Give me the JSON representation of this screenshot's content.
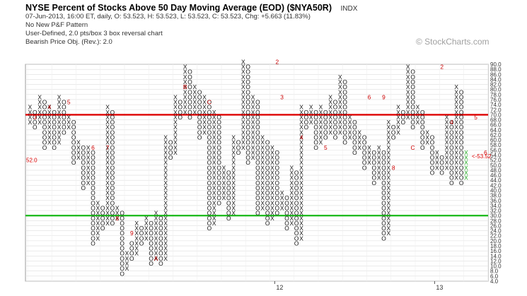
{
  "header": {
    "title": "NYSE Percent of Stocks Above 50 Day Moving Average (EOD) ($NYA50R)",
    "exchange": "INDX",
    "quote": "07-Jun-2013, 16:00 ET, daily, O: 53.523, H: 53.523, L: 53.523, C: 53.523, Chg: +5.663 (11.83%)",
    "pattern": "No New P&F Pattern",
    "scaling": "User-Defined, 2.0 pts/box 3 box reversal chart",
    "objective": "Bearish Price Obj. (Rev.): 2.0"
  },
  "watermark": {
    "text": "© StockCharts.com",
    "icon": "stockcharts-logo-icon"
  },
  "chart_data": {
    "type": "point-and-figure",
    "box_size": 2.0,
    "reversal": 3,
    "ylim": [
      4,
      90
    ],
    "y_ticks": [
      "4.0",
      "6.0",
      "8.0",
      "10.0",
      "12.0",
      "14.0",
      "16.0",
      "18.0",
      "20.0",
      "22.0",
      "24.0",
      "26.0",
      "28.0",
      "30.0",
      "32.0",
      "34.0",
      "36.0",
      "38.0",
      "40.0",
      "42.0",
      "44.0",
      "46.0",
      "48.0",
      "50.0",
      "52.0",
      "54.0",
      "56.0",
      "58.0",
      "60.0",
      "62.0",
      "64.0",
      "66.0",
      "68.0",
      "70.0",
      "72.0",
      "74.0",
      "76.0",
      "78.0",
      "80.0",
      "82.0",
      "84.0",
      "86.0",
      "88.0",
      "90.0"
    ],
    "x_labels": [
      {
        "label": "12",
        "column": 51
      },
      {
        "label": "13",
        "column": 84
      }
    ],
    "reference_lines": [
      {
        "value": 70,
        "color": "#dd0000"
      },
      {
        "value": 30,
        "color": "#22bb22"
      }
    ],
    "last_price_label": "<-53.52",
    "left_price_label": "52.0",
    "month_markers": [
      {
        "label": "3",
        "column": 1,
        "value": 68
      },
      {
        "label": "4",
        "column": 4,
        "value": 72
      },
      {
        "label": "5",
        "column": 8,
        "value": 74
      },
      {
        "label": "6",
        "column": 13,
        "value": 56
      },
      {
        "label": "7",
        "column": 16,
        "value": 56
      },
      {
        "label": "8",
        "column": 18,
        "value": 28
      },
      {
        "label": "9",
        "column": 21,
        "value": 22
      },
      {
        "label": "A",
        "column": 26,
        "value": 12
      },
      {
        "label": "B",
        "column": 32,
        "value": 80
      },
      {
        "label": "C",
        "column": 37,
        "value": 74
      },
      {
        "label": "2",
        "column": 51,
        "value": 90
      },
      {
        "label": "3",
        "column": 52,
        "value": 76
      },
      {
        "label": "4",
        "column": 56,
        "value": 60
      },
      {
        "label": "5",
        "column": 61,
        "value": 56
      },
      {
        "label": "6",
        "column": 70,
        "value": 76
      },
      {
        "label": "8",
        "column": 75,
        "value": 48
      },
      {
        "label": "9",
        "column": 73,
        "value": 76
      },
      {
        "label": "C",
        "column": 79,
        "value": 56
      },
      {
        "label": "2",
        "column": 85,
        "value": 88
      },
      {
        "label": "4",
        "column": 87,
        "value": 66
      },
      {
        "label": "5",
        "column": 92,
        "value": 68
      },
      {
        "label": "6",
        "column": 94,
        "value": 54
      }
    ],
    "columns": [
      {
        "type": "X",
        "low": 66,
        "high": 72
      },
      {
        "type": "O",
        "low": 64,
        "high": 70
      },
      {
        "type": "X",
        "low": 66,
        "high": 76
      },
      {
        "type": "O",
        "low": 56,
        "high": 74
      },
      {
        "type": "X",
        "low": 58,
        "high": 72
      },
      {
        "type": "O",
        "low": 56,
        "high": 70
      },
      {
        "type": "X",
        "low": 58,
        "high": 76
      },
      {
        "type": "O",
        "low": 62,
        "high": 74
      },
      {
        "type": "X",
        "low": 64,
        "high": 68
      },
      {
        "type": "O",
        "low": 50,
        "high": 66
      },
      {
        "type": "X",
        "low": 52,
        "high": 58
      },
      {
        "type": "O",
        "low": 40,
        "high": 56
      },
      {
        "type": "X",
        "low": 42,
        "high": 56
      },
      {
        "type": "O",
        "low": 18,
        "high": 54
      },
      {
        "type": "X",
        "low": 20,
        "high": 34
      },
      {
        "type": "O",
        "low": 24,
        "high": 32
      },
      {
        "type": "X",
        "low": 26,
        "high": 72
      },
      {
        "type": "O",
        "low": 26,
        "high": 70
      },
      {
        "type": "X",
        "low": 28,
        "high": 32
      },
      {
        "type": "O",
        "low": 6,
        "high": 30
      },
      {
        "type": "X",
        "low": 8,
        "high": 14
      },
      {
        "type": "O",
        "low": 12,
        "high": 18
      },
      {
        "type": "X",
        "low": 14,
        "high": 26
      },
      {
        "type": "O",
        "low": 18,
        "high": 24
      },
      {
        "type": "X",
        "low": 20,
        "high": 28
      },
      {
        "type": "O",
        "low": 10,
        "high": 26
      },
      {
        "type": "X",
        "low": 12,
        "high": 30
      },
      {
        "type": "O",
        "low": 10,
        "high": 28
      },
      {
        "type": "X",
        "low": 12,
        "high": 60
      },
      {
        "type": "O",
        "low": 52,
        "high": 58
      },
      {
        "type": "X",
        "low": 54,
        "high": 76
      },
      {
        "type": "O",
        "low": 68,
        "high": 74
      },
      {
        "type": "X",
        "low": 70,
        "high": 88
      },
      {
        "type": "O",
        "low": 68,
        "high": 86
      },
      {
        "type": "X",
        "low": 70,
        "high": 80
      },
      {
        "type": "O",
        "low": 60,
        "high": 78
      },
      {
        "type": "X",
        "low": 62,
        "high": 76
      },
      {
        "type": "O",
        "low": 24,
        "high": 74
      },
      {
        "type": "X",
        "low": 26,
        "high": 70
      },
      {
        "type": "O",
        "low": 34,
        "high": 68
      },
      {
        "type": "X",
        "low": 36,
        "high": 48
      },
      {
        "type": "O",
        "low": 28,
        "high": 46
      },
      {
        "type": "X",
        "low": 30,
        "high": 60
      },
      {
        "type": "O",
        "low": 54,
        "high": 58
      },
      {
        "type": "X",
        "low": 56,
        "high": 90
      },
      {
        "type": "O",
        "low": 50,
        "high": 88
      },
      {
        "type": "X",
        "low": 52,
        "high": 76
      },
      {
        "type": "O",
        "low": 30,
        "high": 74
      },
      {
        "type": "X",
        "low": 32,
        "high": 60
      },
      {
        "type": "O",
        "low": 26,
        "high": 58
      },
      {
        "type": "X",
        "low": 28,
        "high": 56
      },
      {
        "type": "O",
        "low": 30,
        "high": 54
      },
      {
        "type": "X",
        "low": 32,
        "high": 38
      },
      {
        "type": "O",
        "low": 24,
        "high": 36
      },
      {
        "type": "X",
        "low": 26,
        "high": 48
      },
      {
        "type": "O",
        "low": 18,
        "high": 46
      },
      {
        "type": "X",
        "low": 20,
        "high": 72
      },
      {
        "type": "O",
        "low": 64,
        "high": 70
      },
      {
        "type": "X",
        "low": 66,
        "high": 72
      },
      {
        "type": "O",
        "low": 56,
        "high": 70
      },
      {
        "type": "X",
        "low": 58,
        "high": 72
      },
      {
        "type": "O",
        "low": 60,
        "high": 70
      },
      {
        "type": "X",
        "low": 62,
        "high": 76
      },
      {
        "type": "O",
        "low": 60,
        "high": 74
      },
      {
        "type": "X",
        "low": 62,
        "high": 84
      },
      {
        "type": "O",
        "low": 58,
        "high": 82
      },
      {
        "type": "X",
        "low": 60,
        "high": 68
      },
      {
        "type": "O",
        "low": 54,
        "high": 66
      },
      {
        "type": "X",
        "low": 56,
        "high": 62
      },
      {
        "type": "O",
        "low": 48,
        "high": 60
      },
      {
        "type": "X",
        "low": 50,
        "high": 56
      },
      {
        "type": "O",
        "low": 42,
        "high": 54
      },
      {
        "type": "X",
        "low": 44,
        "high": 56
      },
      {
        "type": "O",
        "low": 20,
        "high": 54
      },
      {
        "type": "X",
        "low": 22,
        "high": 66
      },
      {
        "type": "O",
        "low": 60,
        "high": 64
      },
      {
        "type": "X",
        "low": 62,
        "high": 72
      },
      {
        "type": "O",
        "low": 66,
        "high": 70
      },
      {
        "type": "X",
        "low": 68,
        "high": 88
      },
      {
        "type": "O",
        "low": 64,
        "high": 86
      },
      {
        "type": "X",
        "low": 66,
        "high": 72
      },
      {
        "type": "O",
        "low": 56,
        "high": 70
      },
      {
        "type": "X",
        "low": 58,
        "high": 62
      },
      {
        "type": "O",
        "low": 46,
        "high": 60
      },
      {
        "type": "X",
        "low": 48,
        "high": 54
      },
      {
        "type": "O",
        "low": 46,
        "high": 52
      },
      {
        "type": "X",
        "low": 48,
        "high": 68
      },
      {
        "type": "O",
        "low": 42,
        "high": 66
      },
      {
        "type": "X",
        "low": 44,
        "high": 80
      },
      {
        "type": "O",
        "low": 42,
        "high": 78
      },
      {
        "type": "X",
        "low": 44,
        "high": 54
      }
    ]
  }
}
